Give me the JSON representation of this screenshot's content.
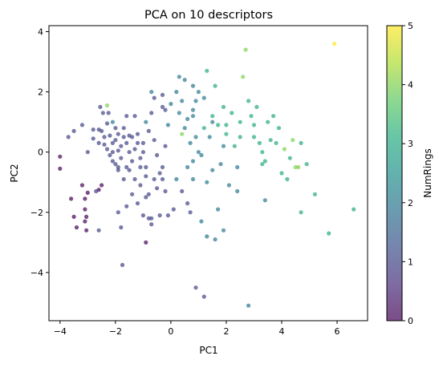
{
  "chart_data": {
    "type": "scatter",
    "title": "PCA on 10 descriptors",
    "xlabel": "PC1",
    "ylabel": "PC2",
    "xlim": [
      -4.4,
      7.1
    ],
    "ylim": [
      -5.6,
      4.2
    ],
    "xticks": [
      -4,
      -2,
      0,
      2,
      4,
      6
    ],
    "yticks": [
      -4,
      -2,
      0,
      2,
      4
    ],
    "grid": false,
    "colormap": "viridis",
    "point_alpha": 0.7,
    "colorbar": {
      "label": "NumRings",
      "range": [
        0,
        5
      ],
      "ticks": [
        0,
        1,
        2,
        3,
        4,
        5
      ]
    },
    "points": [
      {
        "x": -4.0,
        "y": -0.15,
        "c": 0
      },
      {
        "x": -4.0,
        "y": -0.55,
        "c": 0
      },
      {
        "x": -3.7,
        "y": 0.5,
        "c": 1
      },
      {
        "x": -3.5,
        "y": 0.7,
        "c": 1
      },
      {
        "x": -3.6,
        "y": -1.55,
        "c": 0
      },
      {
        "x": -3.2,
        "y": -1.1,
        "c": 0
      },
      {
        "x": -3.5,
        "y": -2.15,
        "c": 0
      },
      {
        "x": -3.4,
        "y": -2.5,
        "c": 0
      },
      {
        "x": -3.1,
        "y": -1.9,
        "c": 0
      },
      {
        "x": -3.05,
        "y": -2.15,
        "c": 0
      },
      {
        "x": -3.1,
        "y": -2.3,
        "c": 0
      },
      {
        "x": -3.1,
        "y": -1.55,
        "c": 0
      },
      {
        "x": -3.0,
        "y": -1.35,
        "c": 0
      },
      {
        "x": -2.6,
        "y": -1.25,
        "c": 0
      },
      {
        "x": -3.05,
        "y": -2.6,
        "c": 0
      },
      {
        "x": -2.7,
        "y": -1.3,
        "c": 1
      },
      {
        "x": -2.5,
        "y": -1.1,
        "c": 0
      },
      {
        "x": -2.6,
        "y": -2.6,
        "c": 1
      },
      {
        "x": -3.0,
        "y": 0.0,
        "c": 1
      },
      {
        "x": -3.2,
        "y": 0.9,
        "c": 1
      },
      {
        "x": -2.8,
        "y": 0.75,
        "c": 1
      },
      {
        "x": -2.5,
        "y": 0.7,
        "c": 1
      },
      {
        "x": -2.8,
        "y": 0.45,
        "c": 1
      },
      {
        "x": -2.6,
        "y": 0.3,
        "c": 1
      },
      {
        "x": -2.4,
        "y": 0.25,
        "c": 1
      },
      {
        "x": -2.3,
        "y": 0.95,
        "c": 1
      },
      {
        "x": -2.55,
        "y": 1.5,
        "c": 1
      },
      {
        "x": -2.45,
        "y": 1.3,
        "c": 1
      },
      {
        "x": -2.3,
        "y": 1.55,
        "c": 4
      },
      {
        "x": -2.25,
        "y": 1.3,
        "c": 1
      },
      {
        "x": -2.1,
        "y": 1.0,
        "c": 2
      },
      {
        "x": -2.0,
        "y": 0.8,
        "c": 1
      },
      {
        "x": -2.3,
        "y": 0.1,
        "c": 1
      },
      {
        "x": -2.2,
        "y": -0.1,
        "c": 1
      },
      {
        "x": -2.0,
        "y": 0.4,
        "c": 1
      },
      {
        "x": -1.9,
        "y": 0.6,
        "c": 1
      },
      {
        "x": -2.1,
        "y": -0.3,
        "c": 1
      },
      {
        "x": -2.0,
        "y": -0.4,
        "c": 1
      },
      {
        "x": -1.8,
        "y": 0.2,
        "c": 1
      },
      {
        "x": -1.7,
        "y": 0.8,
        "c": 1
      },
      {
        "x": -1.9,
        "y": -0.6,
        "c": 1
      },
      {
        "x": -1.6,
        "y": -0.5,
        "c": 1
      },
      {
        "x": -1.5,
        "y": 0.0,
        "c": 1
      },
      {
        "x": -1.4,
        "y": 0.5,
        "c": 1
      },
      {
        "x": -1.3,
        "y": 1.2,
        "c": 1
      },
      {
        "x": -1.6,
        "y": 1.2,
        "c": 1
      },
      {
        "x": -1.2,
        "y": 0.3,
        "c": 1
      },
      {
        "x": -1.1,
        "y": -0.2,
        "c": 1
      },
      {
        "x": -1.0,
        "y": 0.0,
        "c": 1
      },
      {
        "x": -0.9,
        "y": -0.5,
        "c": 1
      },
      {
        "x": -0.8,
        "y": 0.7,
        "c": 1
      },
      {
        "x": -0.9,
        "y": 1.0,
        "c": 2
      },
      {
        "x": -0.7,
        "y": 1.3,
        "c": 1
      },
      {
        "x": -0.6,
        "y": 0.4,
        "c": 1
      },
      {
        "x": -0.5,
        "y": -0.1,
        "c": 1
      },
      {
        "x": -0.4,
        "y": -0.7,
        "c": 1
      },
      {
        "x": -0.3,
        "y": -0.5,
        "c": 1
      },
      {
        "x": -0.2,
        "y": 0.2,
        "c": 1
      },
      {
        "x": -0.1,
        "y": 0.9,
        "c": 2
      },
      {
        "x": -0.3,
        "y": 1.5,
        "c": 1
      },
      {
        "x": -0.6,
        "y": 1.8,
        "c": 1
      },
      {
        "x": -0.3,
        "y": 1.9,
        "c": 1
      },
      {
        "x": -0.7,
        "y": 2.0,
        "c": 2
      },
      {
        "x": -0.2,
        "y": 1.4,
        "c": 1
      },
      {
        "x": 0.0,
        "y": 1.6,
        "c": 2
      },
      {
        "x": 0.2,
        "y": 2.0,
        "c": 2
      },
      {
        "x": 0.3,
        "y": 2.5,
        "c": 2
      },
      {
        "x": 0.4,
        "y": 1.7,
        "c": 2
      },
      {
        "x": 0.5,
        "y": 2.4,
        "c": 2
      },
      {
        "x": 0.8,
        "y": 2.2,
        "c": 2
      },
      {
        "x": 1.0,
        "y": 2.0,
        "c": 2
      },
      {
        "x": 1.3,
        "y": 2.7,
        "c": 3
      },
      {
        "x": 1.6,
        "y": 2.2,
        "c": 3
      },
      {
        "x": 1.2,
        "y": 1.8,
        "c": 2
      },
      {
        "x": 0.8,
        "y": 1.4,
        "c": 2
      },
      {
        "x": 0.8,
        "y": 1.2,
        "c": 2
      },
      {
        "x": 0.6,
        "y": 1.1,
        "c": 2
      },
      {
        "x": 0.3,
        "y": 1.3,
        "c": 2
      },
      {
        "x": 0.4,
        "y": 0.6,
        "c": 4
      },
      {
        "x": 0.5,
        "y": 0.8,
        "c": 2
      },
      {
        "x": 0.7,
        "y": 0.3,
        "c": 2
      },
      {
        "x": 0.9,
        "y": 0.5,
        "c": 2
      },
      {
        "x": 1.0,
        "y": 0.0,
        "c": 2
      },
      {
        "x": 0.8,
        "y": -0.3,
        "c": 2
      },
      {
        "x": 0.6,
        "y": -0.5,
        "c": 2
      },
      {
        "x": 1.2,
        "y": 0.8,
        "c": 3
      },
      {
        "x": 1.4,
        "y": 0.5,
        "c": 2
      },
      {
        "x": 1.5,
        "y": 1.2,
        "c": 3
      },
      {
        "x": 1.7,
        "y": 0.9,
        "c": 3
      },
      {
        "x": 1.9,
        "y": 1.5,
        "c": 3
      },
      {
        "x": 2.0,
        "y": 0.6,
        "c": 3
      },
      {
        "x": 2.2,
        "y": 1.3,
        "c": 3
      },
      {
        "x": 2.3,
        "y": 0.2,
        "c": 3
      },
      {
        "x": 2.5,
        "y": 0.5,
        "c": 3
      },
      {
        "x": 2.6,
        "y": 2.5,
        "c": 4
      },
      {
        "x": 2.7,
        "y": 3.4,
        "c": 4
      },
      {
        "x": 2.8,
        "y": 1.7,
        "c": 3
      },
      {
        "x": 2.9,
        "y": 1.2,
        "c": 3
      },
      {
        "x": 3.0,
        "y": 0.9,
        "c": 3
      },
      {
        "x": 3.1,
        "y": 1.5,
        "c": 3
      },
      {
        "x": 3.2,
        "y": 0.3,
        "c": 3
      },
      {
        "x": 3.3,
        "y": 0.0,
        "c": 3
      },
      {
        "x": 3.4,
        "y": -0.3,
        "c": 3
      },
      {
        "x": 3.3,
        "y": -0.4,
        "c": 3
      },
      {
        "x": 3.5,
        "y": 1.0,
        "c": 3
      },
      {
        "x": 3.7,
        "y": 1.2,
        "c": 3
      },
      {
        "x": 3.8,
        "y": 0.3,
        "c": 3
      },
      {
        "x": 3.9,
        "y": 0.8,
        "c": 3
      },
      {
        "x": 4.0,
        "y": -0.7,
        "c": 3
      },
      {
        "x": 4.1,
        "y": 0.1,
        "c": 4
      },
      {
        "x": 4.3,
        "y": -0.2,
        "c": 3
      },
      {
        "x": 4.4,
        "y": 0.4,
        "c": 4
      },
      {
        "x": 4.5,
        "y": -0.5,
        "c": 4
      },
      {
        "x": 4.6,
        "y": -0.5,
        "c": 4
      },
      {
        "x": 4.7,
        "y": 0.3,
        "c": 3
      },
      {
        "x": 4.9,
        "y": -0.4,
        "c": 3
      },
      {
        "x": 4.2,
        "y": -0.9,
        "c": 3
      },
      {
        "x": 5.2,
        "y": -1.4,
        "c": 3
      },
      {
        "x": 5.7,
        "y": -2.7,
        "c": 3
      },
      {
        "x": 4.7,
        "y": -2.0,
        "c": 3
      },
      {
        "x": 6.6,
        "y": -1.9,
        "c": 3
      },
      {
        "x": 5.9,
        "y": 3.6,
        "c": 5
      },
      {
        "x": 1.5,
        "y": -0.6,
        "c": 2
      },
      {
        "x": 1.3,
        "y": -1.0,
        "c": 2
      },
      {
        "x": 1.8,
        "y": -0.4,
        "c": 2
      },
      {
        "x": 2.1,
        "y": -1.1,
        "c": 2
      },
      {
        "x": 2.4,
        "y": -1.3,
        "c": 2
      },
      {
        "x": 1.7,
        "y": -1.9,
        "c": 2
      },
      {
        "x": 1.1,
        "y": -2.3,
        "c": 2
      },
      {
        "x": 1.3,
        "y": -2.8,
        "c": 2
      },
      {
        "x": 1.6,
        "y": -2.9,
        "c": 2
      },
      {
        "x": 1.9,
        "y": -2.6,
        "c": 2
      },
      {
        "x": 0.9,
        "y": -4.5,
        "c": 1
      },
      {
        "x": 1.2,
        "y": -4.8,
        "c": 1
      },
      {
        "x": 2.8,
        "y": -5.1,
        "c": 2
      },
      {
        "x": 3.4,
        "y": -1.6,
        "c": 2
      },
      {
        "x": 2.4,
        "y": -0.5,
        "c": 2
      },
      {
        "x": 0.2,
        "y": -0.9,
        "c": 2
      },
      {
        "x": 0.4,
        "y": -1.3,
        "c": 1
      },
      {
        "x": 0.7,
        "y": -2.0,
        "c": 1
      },
      {
        "x": 0.1,
        "y": -1.9,
        "c": 1
      },
      {
        "x": -0.2,
        "y": -1.3,
        "c": 1
      },
      {
        "x": -0.5,
        "y": -1.2,
        "c": 1
      },
      {
        "x": -0.8,
        "y": -1.4,
        "c": 1
      },
      {
        "x": -0.4,
        "y": -2.1,
        "c": 1
      },
      {
        "x": -0.7,
        "y": -2.2,
        "c": 1
      },
      {
        "x": -0.9,
        "y": -1.5,
        "c": 1
      },
      {
        "x": -1.1,
        "y": -1.1,
        "c": 1
      },
      {
        "x": -1.3,
        "y": -0.9,
        "c": 1
      },
      {
        "x": -1.4,
        "y": -1.4,
        "c": 1
      },
      {
        "x": -1.2,
        "y": -1.7,
        "c": 1
      },
      {
        "x": -1.0,
        "y": -2.1,
        "c": 1
      },
      {
        "x": -0.8,
        "y": -2.2,
        "c": 1
      },
      {
        "x": -0.7,
        "y": -2.4,
        "c": 1
      },
      {
        "x": -1.6,
        "y": -1.8,
        "c": 1
      },
      {
        "x": -1.9,
        "y": -2.0,
        "c": 1
      },
      {
        "x": -1.7,
        "y": -0.9,
        "c": 1
      },
      {
        "x": -1.9,
        "y": -0.5,
        "c": 1
      },
      {
        "x": -1.8,
        "y": -2.5,
        "c": 1
      },
      {
        "x": -1.75,
        "y": -3.75,
        "c": 1
      },
      {
        "x": -0.9,
        "y": -3.0,
        "c": 0
      },
      {
        "x": -1.4,
        "y": -0.3,
        "c": 1
      },
      {
        "x": -1.0,
        "y": 0.3,
        "c": 1
      },
      {
        "x": -1.8,
        "y": -0.2,
        "c": 1
      },
      {
        "x": -0.3,
        "y": -0.9,
        "c": 1
      },
      {
        "x": -0.1,
        "y": -2.1,
        "c": 1
      },
      {
        "x": 0.6,
        "y": -1.7,
        "c": 1
      },
      {
        "x": 0.8,
        "y": -0.9,
        "c": 2
      },
      {
        "x": 1.1,
        "y": -0.1,
        "c": 2
      },
      {
        "x": 1.9,
        "y": 0.2,
        "c": 2
      },
      {
        "x": 2.5,
        "y": 1.0,
        "c": 3
      },
      {
        "x": 3.0,
        "y": 0.5,
        "c": 3
      },
      {
        "x": 3.6,
        "y": 0.4,
        "c": 3
      },
      {
        "x": 2.0,
        "y": 0.9,
        "c": 3
      },
      {
        "x": 1.5,
        "y": 1.0,
        "c": 2
      },
      {
        "x": 0.9,
        "y": 1.7,
        "c": 2
      },
      {
        "x": -2.6,
        "y": 0.75,
        "c": 1
      },
      {
        "x": -2.4,
        "y": 0.5,
        "c": 1
      },
      {
        "x": -2.2,
        "y": 0.55,
        "c": 1
      },
      {
        "x": -2.1,
        "y": 0.3,
        "c": 1
      },
      {
        "x": -1.9,
        "y": 0.05,
        "c": 1
      },
      {
        "x": -1.6,
        "y": 0.3,
        "c": 1
      },
      {
        "x": -1.5,
        "y": 0.55,
        "c": 1
      },
      {
        "x": -1.3,
        "y": 0.1,
        "c": 1
      },
      {
        "x": -1.2,
        "y": 0.6,
        "c": 1
      },
      {
        "x": -1.1,
        "y": -0.5,
        "c": 1
      },
      {
        "x": -0.9,
        "y": -0.8,
        "c": 1
      },
      {
        "x": -0.6,
        "y": -0.9,
        "c": 1
      },
      {
        "x": -1.5,
        "y": -0.6,
        "c": 1
      },
      {
        "x": -1.7,
        "y": 0.5,
        "c": 1
      },
      {
        "x": -2.1,
        "y": 0.0,
        "c": 1
      }
    ]
  }
}
